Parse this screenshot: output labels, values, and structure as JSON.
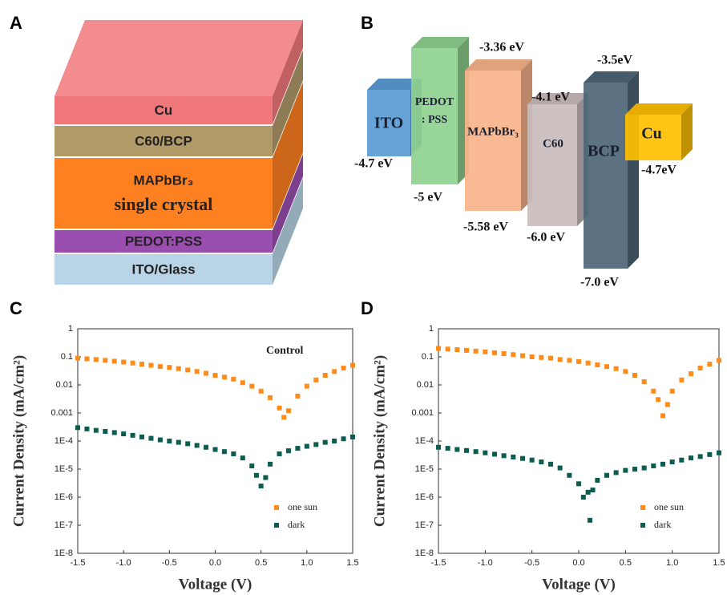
{
  "panel_labels": {
    "a": "A",
    "b": "B",
    "c": "C",
    "d": "D"
  },
  "device_stack": {
    "layers": [
      {
        "label": "Cu"
      },
      {
        "label": "C60/BCP"
      },
      {
        "label": "MAPbBr₃",
        "sublabel": "single crystal"
      },
      {
        "label": "PEDOT:PSS"
      },
      {
        "label": "ITO/Glass"
      }
    ]
  },
  "band_diagram": {
    "materials": [
      {
        "name": "ITO",
        "bottom": "-4.7 eV"
      },
      {
        "name": "PEDOT",
        "name2": ": PSS",
        "bottom": "-5 eV"
      },
      {
        "name": "MAPbBr₃",
        "top": "-3.36 eV",
        "bottom": "-5.58 eV"
      },
      {
        "name": "C60",
        "top": "-4.1 eV",
        "bottom": "-6.0 eV"
      },
      {
        "name": "BCP",
        "top": "-3.5eV",
        "bottom": "-7.0 eV"
      },
      {
        "name": "Cu",
        "bottom": "-4.7eV"
      }
    ]
  },
  "chart_data": [
    {
      "type": "scatter",
      "annotation": "Control",
      "xlabel": "Voltage (V)",
      "ylabel": "Current Density (mA/cm²)",
      "xlim": [
        -1.5,
        1.5
      ],
      "ylim": [
        1e-08,
        1
      ],
      "yscale": "log",
      "legend": "lower right",
      "xticks": [
        -1.5,
        {
          "value": -1,
          "label": "-1.0"
        },
        -0.5,
        {
          "value": 0,
          "label": "0.0"
        },
        0.5,
        {
          "value": 1,
          "label": "1.0"
        },
        1.5
      ],
      "yticks": [
        1,
        0.1,
        0.01,
        0.001,
        {
          "value": 0.0001,
          "label": "1E-4"
        },
        {
          "value": 1e-05,
          "label": "1E-5"
        },
        {
          "value": 1e-06,
          "label": "1E-6"
        },
        {
          "value": 1e-07,
          "label": "1E-7"
        },
        {
          "value": 1e-08,
          "label": "1E-8"
        }
      ],
      "series": [
        {
          "name": "one sun",
          "color": "#ff8c1a",
          "x": [
            -1.5,
            -1.4,
            -1.3,
            -1.2,
            -1.1,
            -1.0,
            -0.9,
            -0.8,
            -0.7,
            -0.6,
            -0.5,
            -0.4,
            -0.3,
            -0.2,
            -0.1,
            0,
            0.1,
            0.2,
            0.3,
            0.4,
            0.5,
            0.6,
            0.7,
            0.75,
            0.8,
            0.9,
            1.0,
            1.1,
            1.2,
            1.3,
            1.4,
            1.5
          ],
          "values": [
            0.09,
            0.085,
            0.08,
            0.075,
            0.07,
            0.065,
            0.06,
            0.055,
            0.05,
            0.045,
            0.042,
            0.038,
            0.034,
            0.03,
            0.026,
            0.022,
            0.019,
            0.016,
            0.012,
            0.009,
            0.006,
            0.0035,
            0.0015,
            0.0007,
            0.0012,
            0.004,
            0.009,
            0.015,
            0.022,
            0.03,
            0.04,
            0.05
          ]
        },
        {
          "name": "dark",
          "color": "#0b5e4f",
          "x": [
            -1.5,
            -1.4,
            -1.3,
            -1.2,
            -1.1,
            -1.0,
            -0.9,
            -0.8,
            -0.7,
            -0.6,
            -0.5,
            -0.4,
            -0.3,
            -0.2,
            -0.1,
            0,
            0.1,
            0.2,
            0.3,
            0.4,
            0.45,
            0.5,
            0.55,
            0.6,
            0.7,
            0.8,
            0.9,
            1.0,
            1.1,
            1.2,
            1.3,
            1.4,
            1.5
          ],
          "values": [
            0.0003,
            0.00027,
            0.00024,
            0.00022,
            0.0002,
            0.00018,
            0.00016,
            0.00014,
            0.000125,
            0.00011,
            0.0001,
            9e-05,
            8e-05,
            7e-05,
            6e-05,
            5e-05,
            4.2e-05,
            3.5e-05,
            2.5e-05,
            1.3e-05,
            6e-06,
            2.5e-06,
            5e-06,
            1.5e-05,
            3.5e-05,
            4.5e-05,
            5.5e-05,
            6.5e-05,
            7.5e-05,
            9e-05,
            0.0001,
            0.00012,
            0.00014
          ]
        }
      ]
    },
    {
      "type": "scatter",
      "xlabel": "Voltage (V)",
      "ylabel": "Current Density (mA/cm²)",
      "xlim": [
        -1.5,
        1.5
      ],
      "ylim": [
        1e-08,
        1
      ],
      "yscale": "log",
      "legend": "lower right",
      "xticks": [
        -1.5,
        {
          "value": -1,
          "label": "-1.0"
        },
        -0.5,
        {
          "value": 0,
          "label": "0.0"
        },
        0.5,
        {
          "value": 1,
          "label": "1.0"
        },
        1.5
      ],
      "yticks": [
        1,
        0.1,
        0.01,
        0.001,
        {
          "value": 0.0001,
          "label": "1E-4"
        },
        {
          "value": 1e-05,
          "label": "1E-5"
        },
        {
          "value": 1e-06,
          "label": "1E-6"
        },
        {
          "value": 1e-07,
          "label": "1E-7"
        },
        {
          "value": 1e-08,
          "label": "1E-8"
        }
      ],
      "series": [
        {
          "name": "one sun",
          "color": "#ff8c1a",
          "x": [
            -1.5,
            -1.4,
            -1.3,
            -1.2,
            -1.1,
            -1.0,
            -0.9,
            -0.8,
            -0.7,
            -0.6,
            -0.5,
            -0.4,
            -0.3,
            -0.2,
            -0.1,
            0,
            0.1,
            0.2,
            0.3,
            0.4,
            0.5,
            0.6,
            0.7,
            0.8,
            0.85,
            0.9,
            0.95,
            1.0,
            1.1,
            1.2,
            1.3,
            1.4,
            1.5
          ],
          "values": [
            0.2,
            0.19,
            0.18,
            0.17,
            0.16,
            0.15,
            0.14,
            0.13,
            0.12,
            0.11,
            0.1,
            0.095,
            0.09,
            0.08,
            0.075,
            0.068,
            0.06,
            0.052,
            0.045,
            0.038,
            0.03,
            0.022,
            0.013,
            0.006,
            0.003,
            0.0008,
            0.002,
            0.006,
            0.015,
            0.025,
            0.04,
            0.055,
            0.075
          ]
        },
        {
          "name": "dark",
          "color": "#0b5e4f",
          "x": [
            -1.5,
            -1.4,
            -1.3,
            -1.2,
            -1.1,
            -1.0,
            -0.9,
            -0.8,
            -0.7,
            -0.6,
            -0.5,
            -0.4,
            -0.3,
            -0.2,
            -0.1,
            0,
            0.05,
            0.1,
            0.12,
            0.15,
            0.2,
            0.3,
            0.4,
            0.5,
            0.6,
            0.7,
            0.8,
            0.9,
            1.0,
            1.1,
            1.2,
            1.3,
            1.4,
            1.5
          ],
          "values": [
            6e-05,
            5.5e-05,
            5e-05,
            4.6e-05,
            4.2e-05,
            3.8e-05,
            3.4e-05,
            3e-05,
            2.7e-05,
            2.4e-05,
            2.1e-05,
            1.8e-05,
            1.5e-05,
            1.1e-05,
            6e-06,
            3e-06,
            1e-06,
            1.5e-06,
            1.5e-07,
            1.8e-06,
            4e-06,
            6e-06,
            7.5e-06,
            9e-06,
            1e-05,
            1.1e-05,
            1.3e-05,
            1.5e-05,
            1.8e-05,
            2.1e-05,
            2.5e-05,
            2.8e-05,
            3.3e-05,
            3.8e-05
          ]
        }
      ]
    }
  ]
}
